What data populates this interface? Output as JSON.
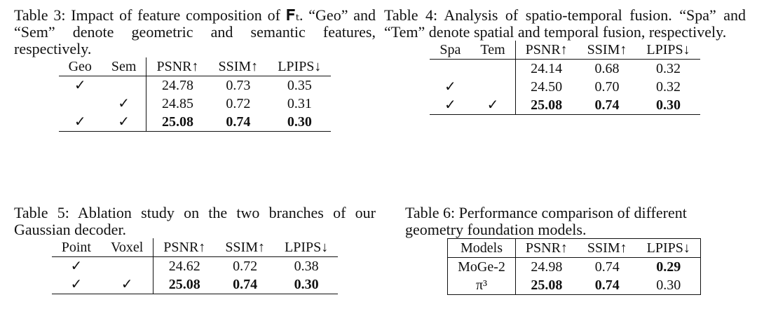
{
  "tables": [
    {
      "caption": "Table 3: Impact of feature composition of 𝐅ₜ. “Geo” and “Sem” denote geometric and semantic features, respectively.",
      "header": [
        "Geo",
        "Sem",
        "PSNR↑",
        "SSIM↑",
        "LPIPS↓"
      ],
      "rows": [
        [
          {
            "text": "✓"
          },
          null,
          {
            "text": "24.78"
          },
          {
            "text": "0.73"
          },
          {
            "text": "0.35"
          }
        ],
        [
          null,
          {
            "text": "✓"
          },
          {
            "text": "24.85"
          },
          {
            "text": "0.72"
          },
          {
            "text": "0.31"
          }
        ],
        [
          {
            "text": "✓"
          },
          {
            "text": "✓"
          },
          {
            "text": "25.08",
            "bold": true
          },
          {
            "text": "0.74",
            "bold": true
          },
          {
            "text": "0.30",
            "bold": true
          }
        ]
      ]
    },
    {
      "caption": "Table 4: Analysis of spatio-temporal fusion. “Spa” and “Tem” denote spatial and temporal fusion, respectively.",
      "header": [
        "Spa",
        "Tem",
        "PSNR↑",
        "SSIM↑",
        "LPIPS↓"
      ],
      "rows": [
        [
          null,
          null,
          {
            "text": "24.14"
          },
          {
            "text": "0.68"
          },
          {
            "text": "0.32"
          }
        ],
        [
          {
            "text": "✓"
          },
          null,
          {
            "text": "24.50"
          },
          {
            "text": "0.70"
          },
          {
            "text": "0.32"
          }
        ],
        [
          {
            "text": "✓"
          },
          {
            "text": "✓"
          },
          {
            "text": "25.08",
            "bold": true
          },
          {
            "text": "0.74",
            "bold": true
          },
          {
            "text": "0.30",
            "bold": true
          }
        ]
      ]
    },
    {
      "caption": "Table 5: Ablation study on the two branches of our Gaussian decoder.",
      "header": [
        "Point",
        "Voxel",
        "PSNR↑",
        "SSIM↑",
        "LPIPS↓"
      ],
      "rows": [
        [
          {
            "text": "✓"
          },
          null,
          {
            "text": "24.62"
          },
          {
            "text": "0.72"
          },
          {
            "text": "0.38"
          }
        ],
        [
          {
            "text": "✓"
          },
          {
            "text": "✓"
          },
          {
            "text": "25.08",
            "bold": true
          },
          {
            "text": "0.74",
            "bold": true
          },
          {
            "text": "0.30",
            "bold": true
          }
        ]
      ]
    },
    {
      "caption": "Table 6: Performance comparison of different geometry foundation models.",
      "header": [
        "Models",
        "PSNR↑",
        "SSIM↑",
        "LPIPS↓"
      ],
      "rows": [
        [
          {
            "text": "MoGe-2"
          },
          {
            "text": "24.98"
          },
          {
            "text": "0.74"
          },
          {
            "text": "0.29",
            "bold": true
          }
        ],
        [
          {
            "text": "π³"
          },
          {
            "text": "25.08",
            "bold": true
          },
          {
            "text": "0.74",
            "bold": true
          },
          {
            "text": "0.30"
          }
        ]
      ]
    }
  ]
}
